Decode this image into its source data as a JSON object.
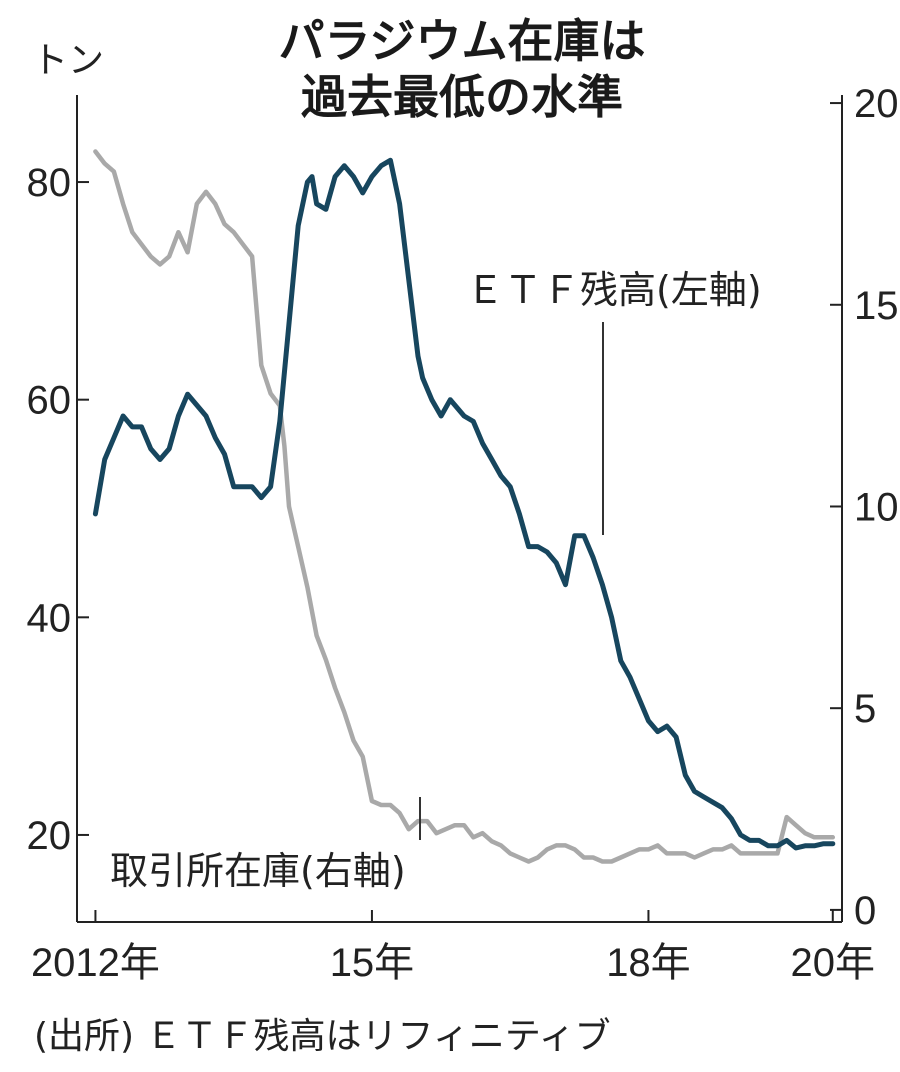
{
  "chart_data": {
    "type": "line",
    "title_lines": [
      "パラジウム在庫は",
      "過去最低の水準"
    ],
    "left_unit": "トン",
    "x_ticks": [
      "2012年",
      "15年",
      "18年",
      "20年"
    ],
    "x_tick_values": [
      2012,
      2015,
      2018,
      2020
    ],
    "xlim": [
      2011.8,
      2020.1
    ],
    "left_ylim": [
      12,
      88
    ],
    "right_ylim": [
      -0.3,
      20.2
    ],
    "left_ticks": [
      80,
      60,
      40,
      20
    ],
    "right_ticks": [
      20,
      15,
      10,
      5,
      0
    ],
    "right_tick_labels": [
      "20",
      "15",
      "10",
      "5",
      "0"
    ],
    "source_note": "(出所) ＥＴＦ残高はリフィニティブ",
    "colors": {
      "etf": "#17465e",
      "exchange": "#a9a9a9",
      "axis": "#222222"
    },
    "series": [
      {
        "name": "ＥＴＦ残高(左軸)",
        "axis": "left",
        "x": [
          2012.0,
          2012.1,
          2012.2,
          2012.3,
          2012.4,
          2012.5,
          2012.6,
          2012.7,
          2012.8,
          2012.9,
          2013.0,
          2013.1,
          2013.2,
          2013.3,
          2013.4,
          2013.5,
          2013.6,
          2013.7,
          2013.8,
          2013.9,
          2014.0,
          2014.1,
          2014.2,
          2014.3,
          2014.35,
          2014.4,
          2014.5,
          2014.55,
          2014.6,
          2014.7,
          2014.8,
          2014.9,
          2015.0,
          2015.1,
          2015.2,
          2015.3,
          2015.4,
          2015.5,
          2015.55,
          2015.65,
          2015.75,
          2015.85,
          2016.0,
          2016.1,
          2016.2,
          2016.3,
          2016.4,
          2016.5,
          2016.6,
          2016.7,
          2016.8,
          2016.9,
          2017.0,
          2017.1,
          2017.2,
          2017.3,
          2017.4,
          2017.5,
          2017.6,
          2017.7,
          2017.8,
          2017.9,
          2018.0,
          2018.1,
          2018.2,
          2018.3,
          2018.4,
          2018.5,
          2018.6,
          2018.7,
          2018.8,
          2018.9,
          2019.0,
          2019.1,
          2019.2,
          2019.3,
          2019.4,
          2019.5,
          2019.6,
          2019.7,
          2019.8,
          2019.9,
          2020.0
        ],
        "values": [
          49.5,
          54.5,
          56.5,
          58.5,
          57.5,
          57.5,
          55.5,
          54.5,
          55.5,
          58.5,
          60.5,
          59.5,
          58.5,
          56.5,
          55,
          52,
          52,
          52,
          51,
          52,
          58,
          67,
          76,
          80,
          80.5,
          78,
          77.5,
          79,
          80.5,
          81.5,
          80.5,
          79,
          80.5,
          81.5,
          82,
          78,
          71,
          64,
          62,
          60,
          58.5,
          60,
          58.5,
          58,
          56,
          54.5,
          53,
          52,
          49.5,
          46.5,
          46.5,
          46,
          45,
          43,
          47.5,
          47.5,
          45.5,
          43,
          40,
          36,
          34.5,
          32.5,
          30.5,
          29.5,
          30,
          29,
          25.5,
          24,
          23.5,
          23,
          22.5,
          21.5,
          20,
          19.5,
          19.5,
          19,
          19,
          19.5,
          18.8,
          19,
          19,
          19.2,
          19.2
        ]
      },
      {
        "name": "取引所在庫(右軸)",
        "axis": "right",
        "x": [
          2012.0,
          2012.1,
          2012.2,
          2012.3,
          2012.4,
          2012.5,
          2012.6,
          2012.7,
          2012.8,
          2012.9,
          2013.0,
          2013.1,
          2013.2,
          2013.3,
          2013.4,
          2013.5,
          2013.6,
          2013.7,
          2013.8,
          2013.9,
          2014.0,
          2014.05,
          2014.1,
          2014.15,
          2014.2,
          2014.3,
          2014.4,
          2014.5,
          2014.6,
          2014.7,
          2014.8,
          2014.9,
          2015.0,
          2015.1,
          2015.2,
          2015.3,
          2015.4,
          2015.5,
          2015.6,
          2015.7,
          2015.8,
          2015.9,
          2016.0,
          2016.1,
          2016.2,
          2016.3,
          2016.4,
          2016.5,
          2016.6,
          2016.7,
          2016.8,
          2016.9,
          2017.0,
          2017.1,
          2017.2,
          2017.3,
          2017.4,
          2017.5,
          2017.6,
          2017.7,
          2017.8,
          2017.9,
          2018.0,
          2018.1,
          2018.2,
          2018.3,
          2018.4,
          2018.5,
          2018.6,
          2018.7,
          2018.8,
          2018.9,
          2019.0,
          2019.1,
          2019.2,
          2019.3,
          2019.4,
          2019.5,
          2019.6,
          2019.7,
          2019.8,
          2019.9,
          2020.0
        ],
        "values": [
          18.8,
          18.5,
          18.3,
          17.5,
          16.8,
          16.5,
          16.2,
          16.0,
          16.2,
          16.8,
          16.3,
          17.5,
          17.8,
          17.5,
          17.0,
          16.8,
          16.5,
          16.2,
          13.5,
          12.8,
          12.5,
          11.5,
          10.0,
          9.5,
          9.0,
          8.0,
          6.8,
          6.2,
          5.5,
          4.9,
          4.2,
          3.8,
          2.7,
          2.6,
          2.6,
          2.4,
          2.0,
          2.2,
          2.2,
          1.9,
          2.0,
          2.1,
          2.1,
          1.8,
          1.9,
          1.7,
          1.6,
          1.4,
          1.3,
          1.2,
          1.3,
          1.5,
          1.6,
          1.6,
          1.5,
          1.3,
          1.3,
          1.2,
          1.2,
          1.3,
          1.4,
          1.5,
          1.5,
          1.6,
          1.4,
          1.4,
          1.4,
          1.3,
          1.4,
          1.5,
          1.5,
          1.6,
          1.4,
          1.4,
          1.4,
          1.4,
          1.4,
          2.3,
          2.1,
          1.9,
          1.8,
          1.8,
          1.8
        ]
      }
    ]
  }
}
